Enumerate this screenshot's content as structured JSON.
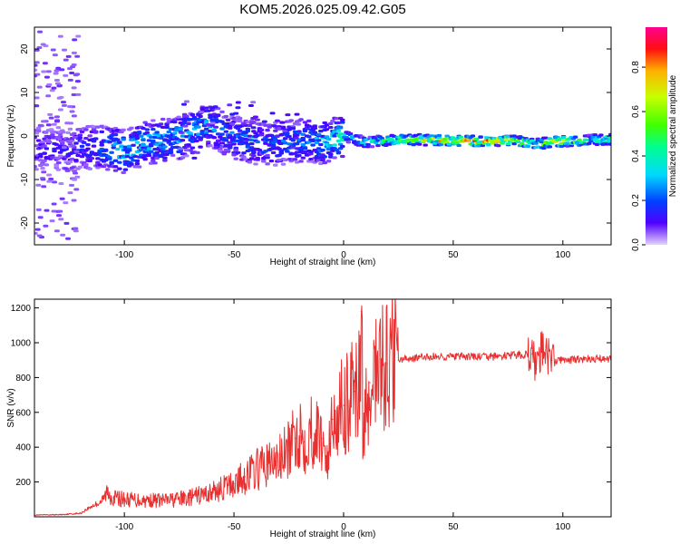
{
  "chart_data": [
    {
      "type": "heatmap",
      "title": "KOM5.2026.025.09.42.G05",
      "xlabel": "Height of straight line (km)",
      "ylabel": "Frequency (Hz)",
      "xlim": [
        -141,
        122
      ],
      "ylim": [
        -25,
        25
      ],
      "xticks": [
        -100,
        -50,
        0,
        50,
        100
      ],
      "yticks": [
        -20,
        -10,
        0,
        10,
        20
      ],
      "colorbar": {
        "label": "Normalized spectral amplitude",
        "range": [
          0.0,
          0.98
        ],
        "ticks": [
          0.0,
          0.2,
          0.4,
          0.6,
          0.8
        ],
        "colors": [
          "#e6d2ff",
          "#5000ff",
          "#0040ff",
          "#00d8ff",
          "#00ff90",
          "#40ff00",
          "#c8ff00",
          "#ffb000",
          "#ff1010",
          "#ff0090"
        ]
      },
      "ridge": [
        {
          "x": -125,
          "f": -3.0,
          "amp": 0.15
        },
        {
          "x": -110,
          "f": -2.5,
          "amp": 0.25
        },
        {
          "x": -100,
          "f": -3.5,
          "amp": 0.35
        },
        {
          "x": -90,
          "f": -1.5,
          "amp": 0.3
        },
        {
          "x": -75,
          "f": -0.5,
          "amp": 0.3
        },
        {
          "x": -62,
          "f": 2.5,
          "amp": 0.28
        },
        {
          "x": -50,
          "f": -0.5,
          "amp": 0.25
        },
        {
          "x": -35,
          "f": -2.0,
          "amp": 0.22
        },
        {
          "x": -20,
          "f": -1.0,
          "amp": 0.25
        },
        {
          "x": -10,
          "f": -1.5,
          "amp": 0.3
        },
        {
          "x": 0,
          "f": 0.0,
          "amp": 0.4
        },
        {
          "x": 10,
          "f": -1.5,
          "amp": 0.4
        },
        {
          "x": 20,
          "f": -1.0,
          "amp": 0.5
        },
        {
          "x": 30,
          "f": -0.8,
          "amp": 0.6
        },
        {
          "x": 45,
          "f": -1.0,
          "amp": 0.7
        },
        {
          "x": 60,
          "f": -1.2,
          "amp": 0.8
        },
        {
          "x": 75,
          "f": -1.0,
          "amp": 0.7
        },
        {
          "x": 88,
          "f": -1.8,
          "amp": 0.5
        },
        {
          "x": 100,
          "f": -1.2,
          "amp": 0.7
        },
        {
          "x": 110,
          "f": -1.0,
          "amp": 0.5
        },
        {
          "x": 122,
          "f": -0.8,
          "amp": 0.45
        }
      ]
    },
    {
      "type": "line",
      "xlabel": "Height of straight line (km)",
      "ylabel": "SNR (v/v)",
      "xlim": [
        -141,
        122
      ],
      "ylim": [
        0,
        1250
      ],
      "xticks": [
        -100,
        -50,
        0,
        50,
        100
      ],
      "yticks": [
        200,
        400,
        600,
        800,
        1000,
        1200
      ],
      "series": [
        {
          "name": "SNR",
          "color": "#e83030",
          "x": [
            -141,
            -130,
            -120,
            -115,
            -110,
            -108,
            -105,
            -100,
            -90,
            -80,
            -70,
            -60,
            -50,
            -45,
            -40,
            -35,
            -30,
            -25,
            -22,
            -20,
            -18,
            -15,
            -10,
            -7,
            -5,
            -3,
            0,
            3,
            5,
            7,
            8,
            9,
            10,
            12,
            15,
            20,
            25,
            30,
            40,
            50,
            60,
            70,
            80,
            86,
            88,
            90,
            93,
            95,
            100,
            110,
            122
          ],
          "y": [
            10,
            12,
            20,
            60,
            90,
            140,
            110,
            100,
            95,
            95,
            110,
            140,
            190,
            230,
            270,
            300,
            320,
            380,
            450,
            500,
            430,
            500,
            450,
            330,
            560,
            600,
            640,
            680,
            720,
            780,
            1180,
            400,
            690,
            770,
            840,
            880,
            900,
            910,
            920,
            920,
            920,
            920,
            930,
            935,
            850,
            960,
            920,
            900,
            900,
            905,
            910
          ]
        }
      ]
    }
  ]
}
